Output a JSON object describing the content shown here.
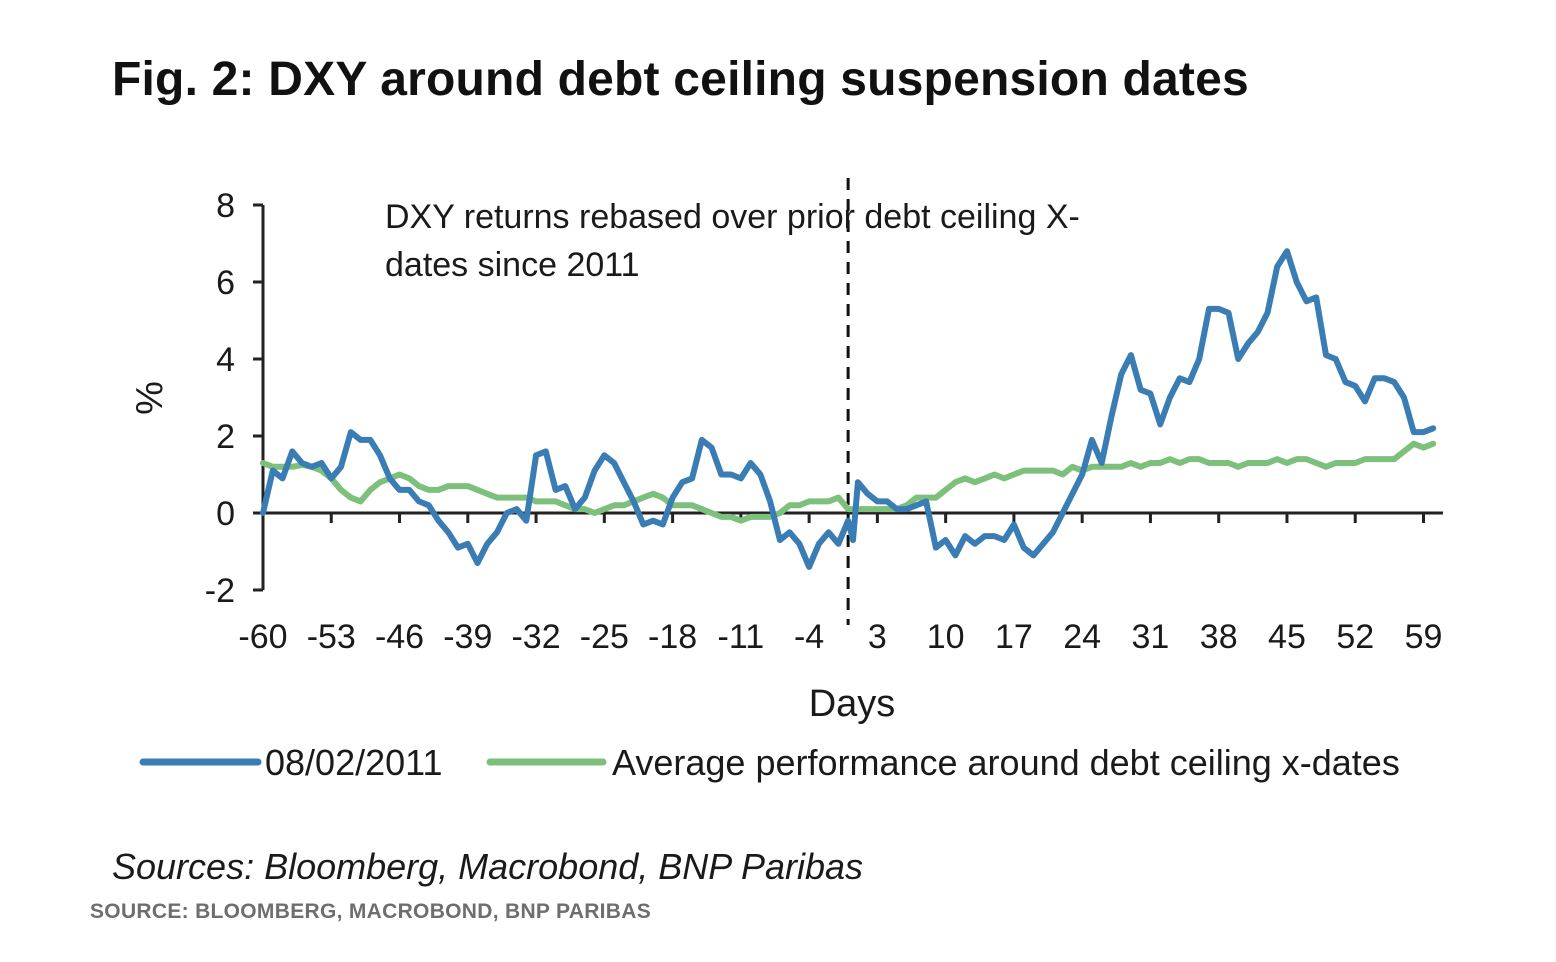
{
  "header": {
    "title": "Fig. 2: DXY around debt ceiling suspension dates"
  },
  "footer": {
    "sources": "Sources: Bloomberg, Macrobond, BNP Paribas",
    "caption": "SOURCE: BLOOMBERG, MACROBOND, BNP PARIBAS"
  },
  "chart_data": {
    "type": "line",
    "title": "Fig. 2: DXY around debt ceiling suspension dates",
    "xlabel": "Days",
    "ylabel": "%",
    "xlim": [
      -60,
      61
    ],
    "ylim": [
      -2,
      8
    ],
    "x_ticks": [
      -60,
      -53,
      -46,
      -39,
      -32,
      -25,
      -18,
      -11,
      -4,
      3,
      10,
      17,
      24,
      31,
      38,
      45,
      52,
      59
    ],
    "y_ticks": [
      -2,
      0,
      2,
      4,
      6,
      8
    ],
    "grid": false,
    "legend_position": "bottom",
    "annotation": {
      "lines": [
        "DXY returns rebased over prior debt ceiling X-",
        "dates since 2011"
      ],
      "vertical_marker_x": 0
    },
    "series": [
      {
        "name": "08/02/2011",
        "color": "#3a7db5",
        "points": [
          [
            -60,
            0.0
          ],
          [
            -59,
            1.1
          ],
          [
            -58,
            0.9
          ],
          [
            -57,
            1.6
          ],
          [
            -56,
            1.3
          ],
          [
            -55,
            1.2
          ],
          [
            -54,
            1.3
          ],
          [
            -53,
            0.9
          ],
          [
            -52,
            1.2
          ],
          [
            -51,
            2.1
          ],
          [
            -50,
            1.9
          ],
          [
            -49,
            1.9
          ],
          [
            -48,
            1.5
          ],
          [
            -47,
            0.9
          ],
          [
            -46,
            0.6
          ],
          [
            -45,
            0.6
          ],
          [
            -44,
            0.3
          ],
          [
            -43,
            0.2
          ],
          [
            -42,
            -0.2
          ],
          [
            -41,
            -0.5
          ],
          [
            -40,
            -0.9
          ],
          [
            -39,
            -0.8
          ],
          [
            -38,
            -1.3
          ],
          [
            -37,
            -0.8
          ],
          [
            -36,
            -0.5
          ],
          [
            -35,
            0.0
          ],
          [
            -34,
            0.1
          ],
          [
            -33,
            -0.2
          ],
          [
            -32,
            1.5
          ],
          [
            -31,
            1.6
          ],
          [
            -30,
            0.6
          ],
          [
            -29,
            0.7
          ],
          [
            -28,
            0.1
          ],
          [
            -27,
            0.4
          ],
          [
            -26,
            1.1
          ],
          [
            -25,
            1.5
          ],
          [
            -24,
            1.3
          ],
          [
            -23,
            0.8
          ],
          [
            -22,
            0.3
          ],
          [
            -21,
            -0.3
          ],
          [
            -20,
            -0.2
          ],
          [
            -19,
            -0.3
          ],
          [
            -18,
            0.4
          ],
          [
            -17,
            0.8
          ],
          [
            -16,
            0.9
          ],
          [
            -15,
            1.9
          ],
          [
            -14,
            1.7
          ],
          [
            -13,
            1.0
          ],
          [
            -12,
            1.0
          ],
          [
            -11,
            0.9
          ],
          [
            -10,
            1.3
          ],
          [
            -9,
            1.0
          ],
          [
            -8,
            0.3
          ],
          [
            -7,
            -0.7
          ],
          [
            -6,
            -0.5
          ],
          [
            -5,
            -0.8
          ],
          [
            -4,
            -1.4
          ],
          [
            -3,
            -0.8
          ],
          [
            -2,
            -0.5
          ],
          [
            -1,
            -0.8
          ],
          [
            0,
            -0.2
          ],
          [
            0.5,
            -0.7
          ],
          [
            1,
            0.8
          ],
          [
            2,
            0.5
          ],
          [
            3,
            0.3
          ],
          [
            4,
            0.3
          ],
          [
            5,
            0.1
          ],
          [
            6,
            0.1
          ],
          [
            7,
            0.2
          ],
          [
            8,
            0.3
          ],
          [
            9,
            -0.9
          ],
          [
            10,
            -0.7
          ],
          [
            11,
            -1.1
          ],
          [
            12,
            -0.6
          ],
          [
            13,
            -0.8
          ],
          [
            14,
            -0.6
          ],
          [
            15,
            -0.6
          ],
          [
            16,
            -0.7
          ],
          [
            17,
            -0.3
          ],
          [
            18,
            -0.9
          ],
          [
            19,
            -1.1
          ],
          [
            20,
            -0.8
          ],
          [
            21,
            -0.5
          ],
          [
            22,
            0.0
          ],
          [
            23,
            0.5
          ],
          [
            24,
            1.0
          ],
          [
            25,
            1.9
          ],
          [
            26,
            1.3
          ],
          [
            27,
            2.5
          ],
          [
            28,
            3.6
          ],
          [
            29,
            4.1
          ],
          [
            30,
            3.2
          ],
          [
            31,
            3.1
          ],
          [
            32,
            2.3
          ],
          [
            33,
            3.0
          ],
          [
            34,
            3.5
          ],
          [
            35,
            3.4
          ],
          [
            36,
            4.0
          ],
          [
            37,
            5.3
          ],
          [
            38,
            5.3
          ],
          [
            39,
            5.2
          ],
          [
            40,
            4.0
          ],
          [
            41,
            4.4
          ],
          [
            42,
            4.7
          ],
          [
            43,
            5.2
          ],
          [
            44,
            6.4
          ],
          [
            45,
            6.8
          ],
          [
            46,
            6.0
          ],
          [
            47,
            5.5
          ],
          [
            48,
            5.6
          ],
          [
            49,
            4.1
          ],
          [
            50,
            4.0
          ],
          [
            51,
            3.4
          ],
          [
            52,
            3.3
          ],
          [
            53,
            2.9
          ],
          [
            54,
            3.5
          ],
          [
            55,
            3.5
          ],
          [
            56,
            3.4
          ],
          [
            57,
            3.0
          ],
          [
            58,
            2.1
          ],
          [
            59,
            2.1
          ],
          [
            60,
            2.2
          ]
        ]
      },
      {
        "name": "Average performance around debt ceiling x-dates",
        "color": "#7cc07c",
        "points": [
          [
            -60,
            1.3
          ],
          [
            -59,
            1.2
          ],
          [
            -58,
            1.2
          ],
          [
            -57,
            1.2
          ],
          [
            -56,
            1.25
          ],
          [
            -55,
            1.2
          ],
          [
            -54,
            1.1
          ],
          [
            -53,
            0.9
          ],
          [
            -52,
            0.6
          ],
          [
            -51,
            0.4
          ],
          [
            -50,
            0.3
          ],
          [
            -49,
            0.6
          ],
          [
            -48,
            0.8
          ],
          [
            -47,
            0.9
          ],
          [
            -46,
            1.0
          ],
          [
            -45,
            0.9
          ],
          [
            -44,
            0.7
          ],
          [
            -43,
            0.6
          ],
          [
            -42,
            0.6
          ],
          [
            -41,
            0.7
          ],
          [
            -40,
            0.7
          ],
          [
            -39,
            0.7
          ],
          [
            -38,
            0.6
          ],
          [
            -37,
            0.5
          ],
          [
            -36,
            0.4
          ],
          [
            -35,
            0.4
          ],
          [
            -34,
            0.4
          ],
          [
            -33,
            0.4
          ],
          [
            -32,
            0.3
          ],
          [
            -31,
            0.3
          ],
          [
            -30,
            0.3
          ],
          [
            -29,
            0.2
          ],
          [
            -28,
            0.1
          ],
          [
            -27,
            0.1
          ],
          [
            -26,
            0.0
          ],
          [
            -25,
            0.1
          ],
          [
            -24,
            0.2
          ],
          [
            -23,
            0.2
          ],
          [
            -22,
            0.3
          ],
          [
            -21,
            0.4
          ],
          [
            -20,
            0.5
          ],
          [
            -19,
            0.4
          ],
          [
            -18,
            0.2
          ],
          [
            -17,
            0.2
          ],
          [
            -16,
            0.2
          ],
          [
            -15,
            0.1
          ],
          [
            -14,
            0.0
          ],
          [
            -13,
            -0.1
          ],
          [
            -12,
            -0.1
          ],
          [
            -11,
            -0.2
          ],
          [
            -10,
            -0.1
          ],
          [
            -9,
            -0.1
          ],
          [
            -8,
            -0.1
          ],
          [
            -7,
            0.0
          ],
          [
            -6,
            0.2
          ],
          [
            -5,
            0.2
          ],
          [
            -4,
            0.3
          ],
          [
            -3,
            0.3
          ],
          [
            -2,
            0.3
          ],
          [
            -1,
            0.4
          ],
          [
            0,
            0.1
          ],
          [
            1,
            0.1
          ],
          [
            2,
            0.1
          ],
          [
            3,
            0.1
          ],
          [
            4,
            0.1
          ],
          [
            5,
            0.1
          ],
          [
            6,
            0.2
          ],
          [
            7,
            0.4
          ],
          [
            8,
            0.4
          ],
          [
            9,
            0.4
          ],
          [
            10,
            0.6
          ],
          [
            11,
            0.8
          ],
          [
            12,
            0.9
          ],
          [
            13,
            0.8
          ],
          [
            14,
            0.9
          ],
          [
            15,
            1.0
          ],
          [
            16,
            0.9
          ],
          [
            17,
            1.0
          ],
          [
            18,
            1.1
          ],
          [
            19,
            1.1
          ],
          [
            20,
            1.1
          ],
          [
            21,
            1.1
          ],
          [
            22,
            1.0
          ],
          [
            23,
            1.2
          ],
          [
            24,
            1.1
          ],
          [
            25,
            1.2
          ],
          [
            26,
            1.2
          ],
          [
            27,
            1.2
          ],
          [
            28,
            1.2
          ],
          [
            29,
            1.3
          ],
          [
            30,
            1.2
          ],
          [
            31,
            1.3
          ],
          [
            32,
            1.3
          ],
          [
            33,
            1.4
          ],
          [
            34,
            1.3
          ],
          [
            35,
            1.4
          ],
          [
            36,
            1.4
          ],
          [
            37,
            1.3
          ],
          [
            38,
            1.3
          ],
          [
            39,
            1.3
          ],
          [
            40,
            1.2
          ],
          [
            41,
            1.3
          ],
          [
            42,
            1.3
          ],
          [
            43,
            1.3
          ],
          [
            44,
            1.4
          ],
          [
            45,
            1.3
          ],
          [
            46,
            1.4
          ],
          [
            47,
            1.4
          ],
          [
            48,
            1.3
          ],
          [
            49,
            1.2
          ],
          [
            50,
            1.3
          ],
          [
            51,
            1.3
          ],
          [
            52,
            1.3
          ],
          [
            53,
            1.4
          ],
          [
            54,
            1.4
          ],
          [
            55,
            1.4
          ],
          [
            56,
            1.4
          ],
          [
            57,
            1.6
          ],
          [
            58,
            1.8
          ],
          [
            59,
            1.7
          ],
          [
            60,
            1.8
          ]
        ]
      }
    ]
  }
}
